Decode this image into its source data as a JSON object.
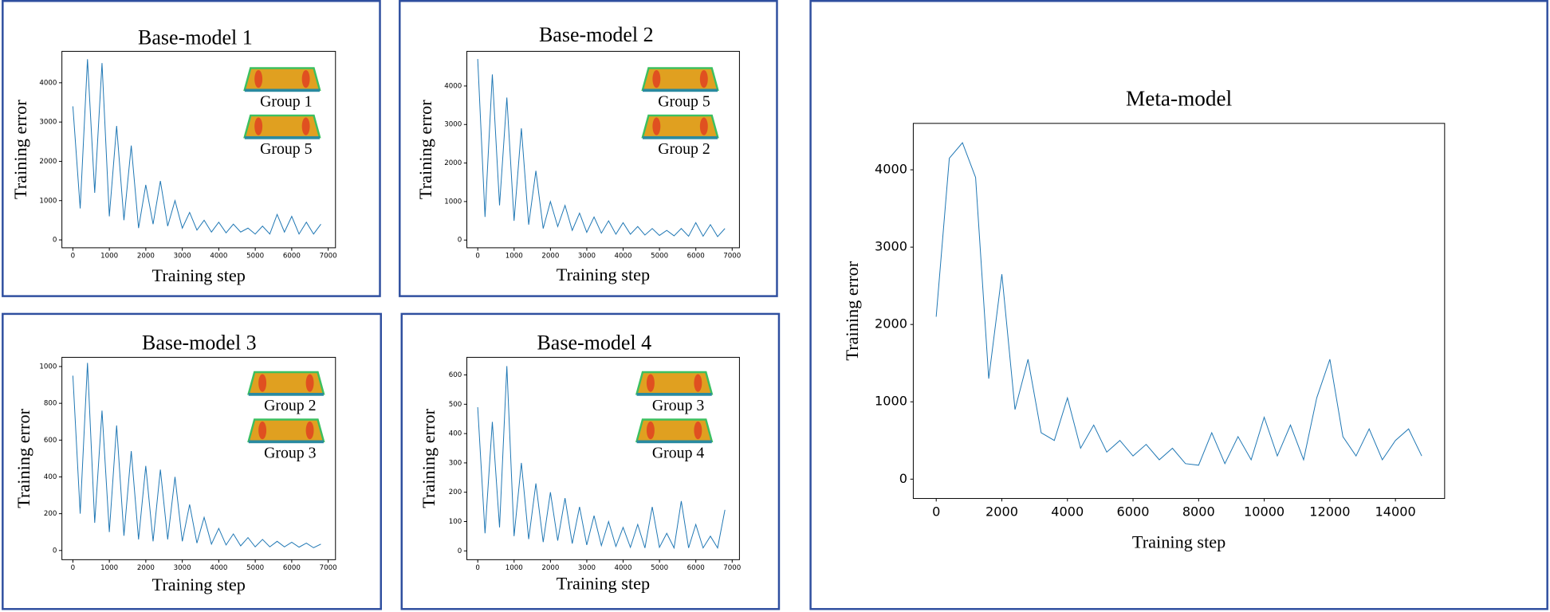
{
  "chart_data": [
    {
      "type": "line",
      "title": "Base-model 1",
      "xlabel": "Training step",
      "ylabel": "Training error",
      "annotations": [
        "Group 1",
        "Group 5"
      ],
      "color": "#1f77b4",
      "xlim": [
        -300,
        7200
      ],
      "ylim": [
        -200,
        4800
      ],
      "xticks": [
        0,
        1000,
        2000,
        3000,
        4000,
        5000,
        6000,
        7000
      ],
      "yticks": [
        0,
        1000,
        2000,
        3000,
        4000
      ],
      "x": [
        0,
        200,
        400,
        600,
        800,
        1000,
        1200,
        1400,
        1600,
        1800,
        2000,
        2200,
        2400,
        2600,
        2800,
        3000,
        3200,
        3400,
        3600,
        3800,
        4000,
        4200,
        4400,
        4600,
        4800,
        5000,
        5200,
        5400,
        5600,
        5800,
        6000,
        6200,
        6400,
        6600,
        6800
      ],
      "values": [
        3400,
        800,
        4600,
        1200,
        4500,
        600,
        2900,
        500,
        2400,
        300,
        1400,
        400,
        1500,
        350,
        1000,
        300,
        700,
        250,
        500,
        200,
        450,
        180,
        400,
        200,
        300,
        150,
        350,
        150,
        650,
        200,
        600,
        150,
        450,
        150,
        400
      ]
    },
    {
      "type": "line",
      "title": "Base-model 2",
      "xlabel": "Training step",
      "ylabel": "Training error",
      "annotations": [
        "Group 5",
        "Group 2"
      ],
      "color": "#1f77b4",
      "xlim": [
        -300,
        7200
      ],
      "ylim": [
        -200,
        4900
      ],
      "xticks": [
        0,
        1000,
        2000,
        3000,
        4000,
        5000,
        6000,
        7000
      ],
      "yticks": [
        0,
        1000,
        2000,
        3000,
        4000
      ],
      "x": [
        0,
        200,
        400,
        600,
        800,
        1000,
        1200,
        1400,
        1600,
        1800,
        2000,
        2200,
        2400,
        2600,
        2800,
        3000,
        3200,
        3400,
        3600,
        3800,
        4000,
        4200,
        4400,
        4600,
        4800,
        5000,
        5200,
        5400,
        5600,
        5800,
        6000,
        6200,
        6400,
        6600,
        6800
      ],
      "values": [
        4700,
        600,
        4300,
        900,
        3700,
        500,
        2900,
        400,
        1800,
        300,
        1000,
        350,
        900,
        250,
        700,
        200,
        600,
        180,
        500,
        150,
        450,
        150,
        350,
        130,
        300,
        120,
        250,
        110,
        300,
        100,
        450,
        100,
        400,
        90,
        300
      ]
    },
    {
      "type": "line",
      "title": "Base-model 3",
      "xlabel": "Training step",
      "ylabel": "Training error",
      "annotations": [
        "Group 2",
        "Group 3"
      ],
      "color": "#1f77b4",
      "xlim": [
        -300,
        7200
      ],
      "ylim": [
        -50,
        1050
      ],
      "xticks": [
        0,
        1000,
        2000,
        3000,
        4000,
        5000,
        6000,
        7000
      ],
      "yticks": [
        0,
        200,
        400,
        600,
        800,
        1000
      ],
      "x": [
        0,
        200,
        400,
        600,
        800,
        1000,
        1200,
        1400,
        1600,
        1800,
        2000,
        2200,
        2400,
        2600,
        2800,
        3000,
        3200,
        3400,
        3600,
        3800,
        4000,
        4200,
        4400,
        4600,
        4800,
        5000,
        5200,
        5400,
        5600,
        5800,
        6000,
        6200,
        6400,
        6600,
        6800
      ],
      "values": [
        950,
        200,
        1020,
        150,
        760,
        100,
        680,
        80,
        540,
        60,
        460,
        50,
        440,
        60,
        400,
        50,
        250,
        40,
        180,
        35,
        120,
        30,
        90,
        25,
        70,
        20,
        60,
        20,
        50,
        20,
        45,
        18,
        40,
        15,
        35
      ]
    },
    {
      "type": "line",
      "title": "Base-model 4",
      "xlabel": "Training step",
      "ylabel": "Training error",
      "annotations": [
        "Group 3",
        "Group 4"
      ],
      "color": "#1f77b4",
      "xlim": [
        -300,
        7200
      ],
      "ylim": [
        -30,
        660
      ],
      "xticks": [
        0,
        1000,
        2000,
        3000,
        4000,
        5000,
        6000,
        7000
      ],
      "yticks": [
        0,
        100,
        200,
        300,
        400,
        500,
        600
      ],
      "x": [
        0,
        200,
        400,
        600,
        800,
        1000,
        1200,
        1400,
        1600,
        1800,
        2000,
        2200,
        2400,
        2600,
        2800,
        3000,
        3200,
        3400,
        3600,
        3800,
        4000,
        4200,
        4400,
        4600,
        4800,
        5000,
        5200,
        5400,
        5600,
        5800,
        6000,
        6200,
        6400,
        6600,
        6800
      ],
      "values": [
        490,
        60,
        440,
        80,
        630,
        50,
        300,
        40,
        230,
        30,
        200,
        35,
        180,
        25,
        150,
        20,
        120,
        18,
        100,
        15,
        80,
        12,
        90,
        10,
        150,
        12,
        60,
        10,
        170,
        10,
        90,
        10,
        50,
        10,
        140
      ]
    },
    {
      "type": "line",
      "title": "Meta-model",
      "xlabel": "Training step",
      "ylabel": "Training error",
      "color": "#1f77b4",
      "xlim": [
        -700,
        15500
      ],
      "ylim": [
        -250,
        4600
      ],
      "xticks": [
        0,
        2000,
        4000,
        6000,
        8000,
        10000,
        12000,
        14000
      ],
      "yticks": [
        0,
        1000,
        2000,
        3000,
        4000
      ],
      "x": [
        0,
        400,
        800,
        1200,
        1600,
        2000,
        2400,
        2800,
        3200,
        3600,
        4000,
        4400,
        4800,
        5200,
        5600,
        6000,
        6400,
        6800,
        7200,
        7600,
        8000,
        8400,
        8800,
        9200,
        9600,
        10000,
        10400,
        10800,
        11200,
        11600,
        12000,
        12400,
        12800,
        13200,
        13600,
        14000,
        14400,
        14800
      ],
      "values": [
        2100,
        4150,
        4350,
        3900,
        1300,
        2650,
        900,
        1550,
        600,
        500,
        1050,
        400,
        700,
        350,
        500,
        300,
        450,
        250,
        400,
        200,
        180,
        600,
        200,
        550,
        250,
        800,
        300,
        700,
        250,
        1050,
        1550,
        550,
        300,
        650,
        250,
        500,
        650,
        300
      ]
    }
  ]
}
